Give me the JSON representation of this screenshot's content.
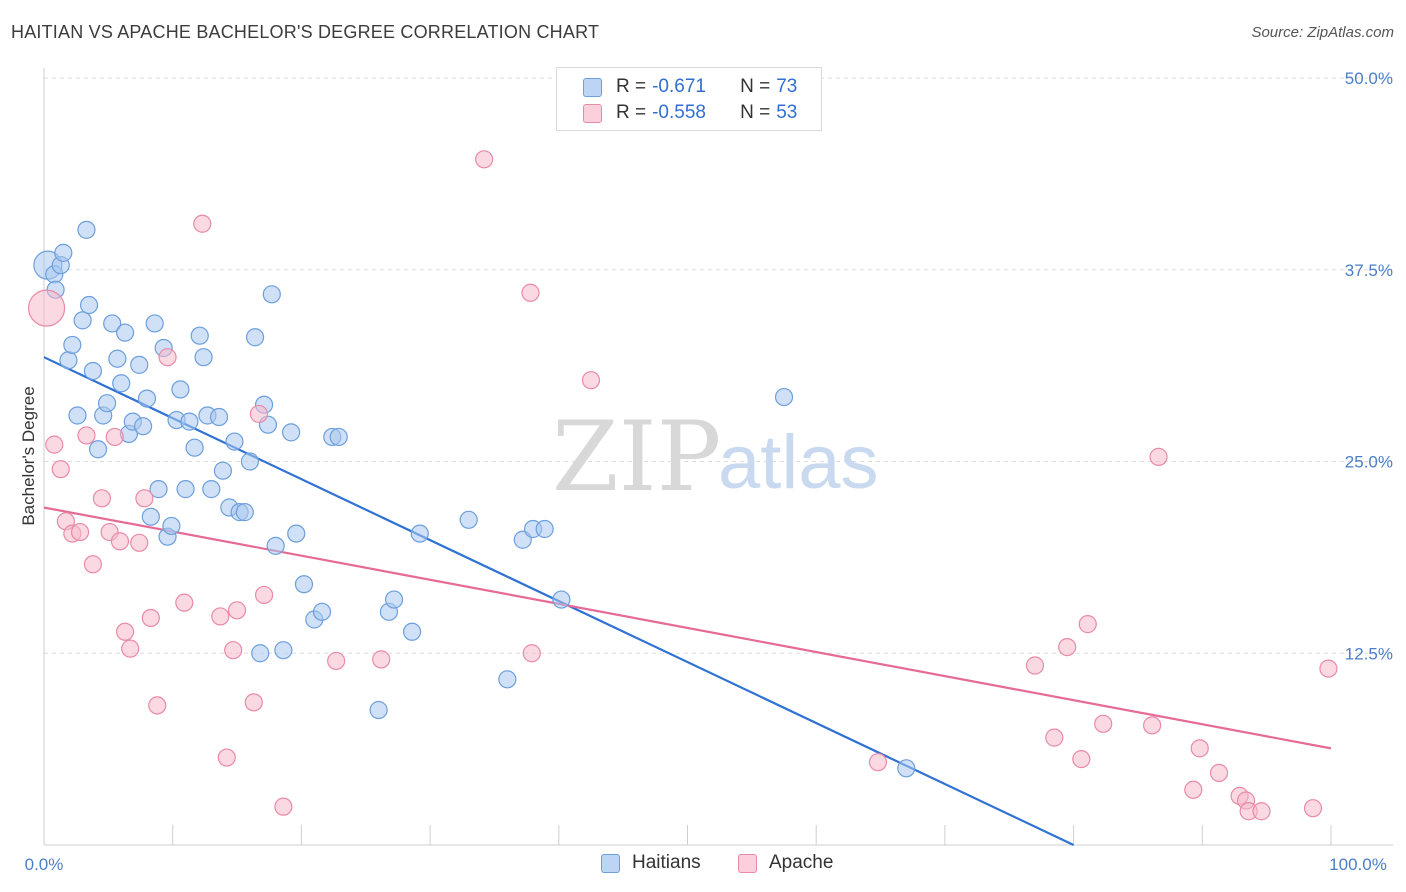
{
  "title": "HAITIAN VS APACHE BACHELOR'S DEGREE CORRELATION CHART",
  "source": "Source: ZipAtlas.com",
  "watermark": {
    "zip": "ZIP",
    "atlas": "atlas"
  },
  "colors": {
    "haitians_fill": "#a9c8f0",
    "haitians_stroke": "#6c9fdc",
    "haitians_line": "#2f72d3",
    "apache_fill": "#f6b9cb",
    "apache_stroke": "#e98aa8",
    "apache_line": "#e56a95",
    "grid": "#dddddd",
    "axis_text": "#4a7fc8"
  },
  "legend": {
    "rows": [
      {
        "r_label": "R =",
        "r_value": "-0.671",
        "n_label": "N =",
        "n_value": "73"
      },
      {
        "r_label": "R =",
        "r_value": "-0.558",
        "n_label": "N =",
        "n_value": "53"
      }
    ]
  },
  "bottom_legend": [
    "Haitians",
    "Apache"
  ],
  "chart_data": {
    "type": "scatter",
    "title": "HAITIAN VS APACHE BACHELOR'S DEGREE CORRELATION CHART",
    "xlabel": "",
    "ylabel": "Bachelor's Degree",
    "xlim": [
      0,
      100
    ],
    "ylim": [
      0,
      50
    ],
    "x_tick_labels": [
      "0.0%",
      "100.0%"
    ],
    "y_ticks": [
      12.5,
      25.0,
      37.5,
      50.0
    ],
    "y_tick_labels": [
      "12.5%",
      "25.0%",
      "37.5%",
      "50.0%"
    ],
    "series": [
      {
        "name": "Haitians",
        "trend": {
          "x": [
            0,
            80
          ],
          "y": [
            31.8,
            0
          ]
        },
        "points": [
          [
            0.3,
            37.8
          ],
          [
            0.8,
            37.2
          ],
          [
            0.9,
            36.2
          ],
          [
            1.3,
            37.8
          ],
          [
            1.5,
            38.6
          ],
          [
            1.9,
            31.6
          ],
          [
            2.2,
            32.6
          ],
          [
            2.6,
            28.0
          ],
          [
            3.0,
            34.2
          ],
          [
            3.3,
            40.1
          ],
          [
            3.5,
            35.2
          ],
          [
            3.8,
            30.9
          ],
          [
            4.2,
            25.8
          ],
          [
            4.6,
            28.0
          ],
          [
            4.9,
            28.8
          ],
          [
            5.3,
            34.0
          ],
          [
            5.7,
            31.7
          ],
          [
            6.0,
            30.1
          ],
          [
            6.3,
            33.4
          ],
          [
            6.6,
            26.8
          ],
          [
            6.9,
            27.6
          ],
          [
            7.4,
            31.3
          ],
          [
            7.7,
            27.3
          ],
          [
            8.0,
            29.1
          ],
          [
            8.3,
            21.4
          ],
          [
            8.6,
            34.0
          ],
          [
            8.9,
            23.2
          ],
          [
            9.3,
            32.4
          ],
          [
            9.6,
            20.1
          ],
          [
            9.9,
            20.8
          ],
          [
            10.3,
            27.7
          ],
          [
            10.6,
            29.7
          ],
          [
            11.0,
            23.2
          ],
          [
            11.3,
            27.6
          ],
          [
            11.7,
            25.9
          ],
          [
            12.1,
            33.2
          ],
          [
            12.4,
            31.8
          ],
          [
            12.7,
            28.0
          ],
          [
            13.0,
            23.2
          ],
          [
            13.6,
            27.9
          ],
          [
            13.9,
            24.4
          ],
          [
            14.4,
            22.0
          ],
          [
            14.8,
            26.3
          ],
          [
            15.2,
            21.7
          ],
          [
            15.6,
            21.7
          ],
          [
            16.0,
            25.0
          ],
          [
            16.4,
            33.1
          ],
          [
            16.8,
            12.5
          ],
          [
            17.1,
            28.7
          ],
          [
            17.4,
            27.4
          ],
          [
            17.7,
            35.9
          ],
          [
            18.0,
            19.5
          ],
          [
            18.6,
            12.7
          ],
          [
            19.2,
            26.9
          ],
          [
            19.6,
            20.3
          ],
          [
            20.2,
            17.0
          ],
          [
            21.0,
            14.7
          ],
          [
            21.6,
            15.2
          ],
          [
            22.4,
            26.6
          ],
          [
            22.9,
            26.6
          ],
          [
            26.0,
            8.8
          ],
          [
            26.8,
            15.2
          ],
          [
            27.2,
            16.0
          ],
          [
            28.6,
            13.9
          ],
          [
            29.2,
            20.3
          ],
          [
            33.0,
            21.2
          ],
          [
            36.0,
            10.8
          ],
          [
            37.2,
            19.9
          ],
          [
            38.0,
            20.6
          ],
          [
            38.9,
            20.6
          ],
          [
            40.2,
            16.0
          ],
          [
            57.5,
            29.2
          ],
          [
            67.0,
            5.0
          ]
        ]
      },
      {
        "name": "Apache",
        "trend": {
          "x": [
            0,
            100
          ],
          "y": [
            22.0,
            6.3
          ]
        },
        "points": [
          [
            0.2,
            35.0
          ],
          [
            0.8,
            26.1
          ],
          [
            1.3,
            24.5
          ],
          [
            1.7,
            21.1
          ],
          [
            2.2,
            20.3
          ],
          [
            2.8,
            20.4
          ],
          [
            3.3,
            26.7
          ],
          [
            3.8,
            18.3
          ],
          [
            4.5,
            22.6
          ],
          [
            5.1,
            20.4
          ],
          [
            5.5,
            26.6
          ],
          [
            5.9,
            19.8
          ],
          [
            6.3,
            13.9
          ],
          [
            6.7,
            12.8
          ],
          [
            7.4,
            19.7
          ],
          [
            7.8,
            22.6
          ],
          [
            8.3,
            14.8
          ],
          [
            8.8,
            9.1
          ],
          [
            9.6,
            31.8
          ],
          [
            10.9,
            15.8
          ],
          [
            12.3,
            40.5
          ],
          [
            13.7,
            14.9
          ],
          [
            14.2,
            5.7
          ],
          [
            14.7,
            12.7
          ],
          [
            15.0,
            15.3
          ],
          [
            16.3,
            9.3
          ],
          [
            16.7,
            28.1
          ],
          [
            17.1,
            16.3
          ],
          [
            18.6,
            2.5
          ],
          [
            22.7,
            12.0
          ],
          [
            26.2,
            12.1
          ],
          [
            34.2,
            44.7
          ],
          [
            37.8,
            36.0
          ],
          [
            37.9,
            12.5
          ],
          [
            42.5,
            30.3
          ],
          [
            64.8,
            5.4
          ],
          [
            77.0,
            11.7
          ],
          [
            78.5,
            7.0
          ],
          [
            79.5,
            12.9
          ],
          [
            80.6,
            5.6
          ],
          [
            81.1,
            14.4
          ],
          [
            82.3,
            7.9
          ],
          [
            86.1,
            7.8
          ],
          [
            86.6,
            25.3
          ],
          [
            89.3,
            3.6
          ],
          [
            89.8,
            6.3
          ],
          [
            91.3,
            4.7
          ],
          [
            92.9,
            3.2
          ],
          [
            93.4,
            2.9
          ],
          [
            93.6,
            2.2
          ],
          [
            94.6,
            2.2
          ],
          [
            98.6,
            2.4
          ],
          [
            99.8,
            11.5
          ]
        ]
      }
    ],
    "bubble_note": "first point of each series drawn larger"
  }
}
